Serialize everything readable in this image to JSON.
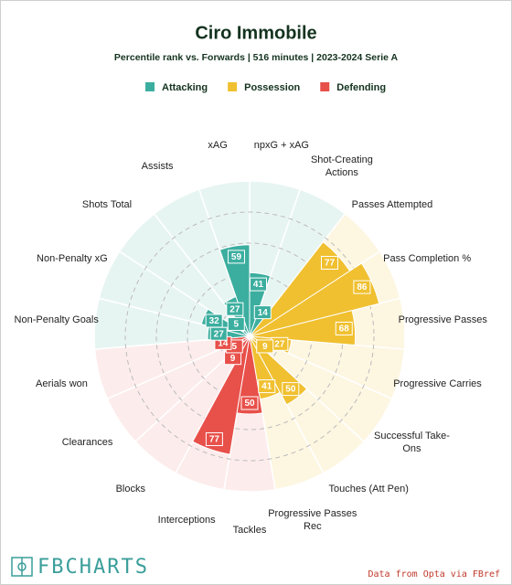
{
  "chart_data": {
    "type": "pizza",
    "title": "Ciro Immobile",
    "subtitle": "Percentile rank vs. Forwards | 516 minutes | 2023-2024 Serie A",
    "categories": [
      "npxG + xAG",
      "Shot-Creating Actions",
      "Passes Attempted",
      "Pass Completion %",
      "Progressive Passes",
      "Progressive Carries",
      "Successful Take-Ons",
      "Touches (Att Pen)",
      "Progressive Passes Rec",
      "Tackles",
      "Interceptions",
      "Blocks",
      "Clearances",
      "Aerials won",
      "Non-Penalty Goals",
      "Non-Penalty xG",
      "Shots Total",
      "Assists",
      "xAG"
    ],
    "series": [
      {
        "name": "Attacking",
        "color": "#3cae9f",
        "background": "#e7f5f2",
        "values": [
          41,
          14,
          null,
          null,
          null,
          null,
          null,
          null,
          null,
          null,
          null,
          null,
          null,
          null,
          27,
          32,
          5,
          27,
          59
        ]
      },
      {
        "name": "Possession",
        "color": "#f0c030",
        "background": "#fdf6e1",
        "values": [
          null,
          null,
          77,
          86,
          68,
          27,
          9,
          50,
          41,
          null,
          null,
          null,
          null,
          null,
          null,
          null,
          null,
          null,
          null
        ]
      },
      {
        "name": "Defending",
        "color": "#e8504a",
        "background": "#fdecec",
        "values": [
          null,
          null,
          null,
          null,
          null,
          null,
          null,
          null,
          null,
          50,
          77,
          9,
          5,
          14,
          null,
          null,
          null,
          null,
          null
        ]
      }
    ],
    "ylim": [
      0,
      100
    ],
    "yticks": [
      20,
      40,
      60,
      80
    ],
    "grid": true,
    "logo": "FBCHARTS",
    "source": "Data from Opta via FBref"
  }
}
